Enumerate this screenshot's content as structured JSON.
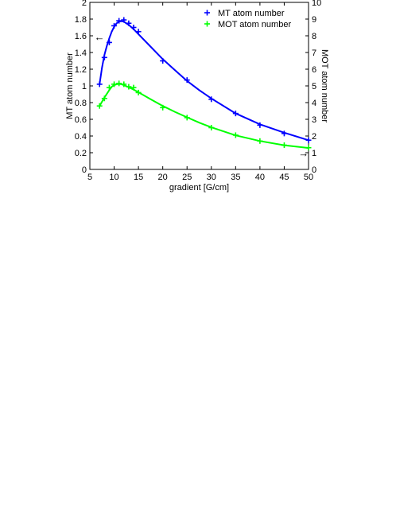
{
  "chart_data": {
    "type": "line",
    "title": "",
    "xlabel": "gradient [G/cm]",
    "ylabel": "MT atom number",
    "ylabel_right": "MOT atom number",
    "xlim": [
      5,
      50
    ],
    "ylim": [
      0,
      2
    ],
    "ylim_right": [
      0,
      10
    ],
    "xticks": [
      5,
      10,
      15,
      20,
      25,
      30,
      35,
      40,
      45,
      50
    ],
    "yticks": [
      0,
      0.2,
      0.4,
      0.6,
      0.8,
      1,
      1.2,
      1.4,
      1.6,
      1.8,
      2
    ],
    "yticks_right": [
      0,
      1,
      2,
      3,
      4,
      5,
      6,
      7,
      8,
      9,
      10
    ],
    "grid": false,
    "legend_position": "top-right",
    "series": [
      {
        "name": "MT atom number",
        "axis": "left",
        "color": "#0000ff",
        "marker": "plus",
        "points": [
          [
            7,
            1.02
          ],
          [
            8,
            1.34
          ],
          [
            9,
            1.52
          ],
          [
            10,
            1.72
          ],
          [
            11,
            1.78
          ],
          [
            12,
            1.79
          ],
          [
            13,
            1.75
          ],
          [
            14,
            1.7
          ],
          [
            15,
            1.65
          ],
          [
            20,
            1.3
          ],
          [
            25,
            1.07
          ],
          [
            30,
            0.84
          ],
          [
            35,
            0.67
          ],
          [
            40,
            0.53
          ],
          [
            45,
            0.43
          ],
          [
            50,
            0.35
          ]
        ],
        "fit": [
          [
            7,
            1.02
          ],
          [
            7.5,
            1.22
          ],
          [
            8,
            1.37
          ],
          [
            8.5,
            1.48
          ],
          [
            9,
            1.57
          ],
          [
            9.5,
            1.65
          ],
          [
            10,
            1.71
          ],
          [
            10.5,
            1.75
          ],
          [
            11,
            1.77
          ],
          [
            11.5,
            1.775
          ],
          [
            12,
            1.77
          ],
          [
            12.5,
            1.75
          ],
          [
            13,
            1.73
          ],
          [
            14,
            1.68
          ],
          [
            15,
            1.62
          ],
          [
            17,
            1.5
          ],
          [
            20,
            1.32
          ],
          [
            22.5,
            1.19
          ],
          [
            25,
            1.06
          ],
          [
            27.5,
            0.95
          ],
          [
            30,
            0.85
          ],
          [
            35,
            0.67
          ],
          [
            40,
            0.54
          ],
          [
            45,
            0.44
          ],
          [
            50,
            0.35
          ]
        ]
      },
      {
        "name": "MOT atom number",
        "axis": "right",
        "color": "#00ff00",
        "marker": "plus",
        "points": [
          [
            7,
            3.8
          ],
          [
            8,
            4.25
          ],
          [
            9,
            4.9
          ],
          [
            10,
            5.1
          ],
          [
            11,
            5.15
          ],
          [
            12,
            5.1
          ],
          [
            13,
            4.95
          ],
          [
            14,
            4.9
          ],
          [
            15,
            4.6
          ],
          [
            20,
            3.7
          ],
          [
            25,
            3.1
          ],
          [
            30,
            2.5
          ],
          [
            35,
            2.05
          ],
          [
            40,
            1.7
          ],
          [
            45,
            1.45
          ],
          [
            50,
            1.3
          ]
        ],
        "fit": [
          [
            7,
            3.8
          ],
          [
            8,
            4.3
          ],
          [
            9,
            4.75
          ],
          [
            9.5,
            4.95
          ],
          [
            10,
            5.05
          ],
          [
            10.5,
            5.1
          ],
          [
            11,
            5.12
          ],
          [
            11.5,
            5.1
          ],
          [
            12,
            5.05
          ],
          [
            13,
            4.92
          ],
          [
            14,
            4.78
          ],
          [
            15,
            4.62
          ],
          [
            17.5,
            4.2
          ],
          [
            20,
            3.8
          ],
          [
            22.5,
            3.45
          ],
          [
            25,
            3.12
          ],
          [
            27.5,
            2.8
          ],
          [
            30,
            2.52
          ],
          [
            35,
            2.04
          ],
          [
            40,
            1.7
          ],
          [
            45,
            1.45
          ],
          [
            50,
            1.28
          ]
        ]
      }
    ],
    "annotations": [
      {
        "text": "←",
        "series": "MT atom number",
        "x": 6,
        "y": 1.58
      },
      {
        "text": "→",
        "series": "MOT atom number",
        "x": 48,
        "y_right": 0.95
      }
    ]
  }
}
